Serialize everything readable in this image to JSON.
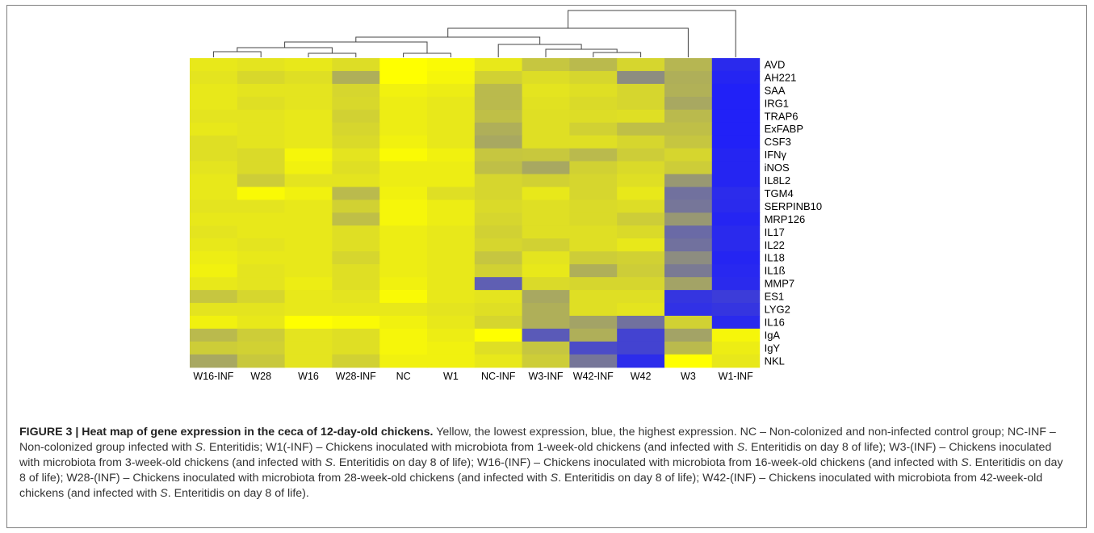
{
  "chart_data": {
    "type": "heatmap",
    "columns": [
      "W16-INF",
      "W28",
      "W16",
      "W28-INF",
      "NC",
      "W1",
      "NC-INF",
      "W3-INF",
      "W42-INF",
      "W42",
      "W3",
      "W1-INF"
    ],
    "rows": [
      "AVD",
      "AH221",
      "SAA",
      "IRG1",
      "TRAP6",
      "ExFABP",
      "CSF3",
      "IFNγ",
      "iNOS",
      "IL8L2",
      "TGM4",
      "SERPINB10",
      "MRP126",
      "IL17",
      "IL22",
      "IL18",
      "IL1ß",
      "MMP7",
      "ES1",
      "LYG2",
      "IL16",
      "IgA",
      "IgY",
      "NKL"
    ],
    "scale": "0 = yellow (lowest expression), 1 = blue (highest expression)",
    "color_low": "#ffff00",
    "color_high": "#1a1aff",
    "values": [
      [
        0.1,
        0.12,
        0.1,
        0.15,
        0.0,
        0.02,
        0.1,
        0.25,
        0.3,
        0.18,
        0.32,
        0.93
      ],
      [
        0.12,
        0.17,
        0.14,
        0.35,
        0.0,
        0.04,
        0.2,
        0.15,
        0.18,
        0.5,
        0.35,
        0.95
      ],
      [
        0.1,
        0.12,
        0.12,
        0.18,
        0.06,
        0.08,
        0.3,
        0.12,
        0.14,
        0.18,
        0.34,
        0.97
      ],
      [
        0.1,
        0.14,
        0.12,
        0.17,
        0.08,
        0.1,
        0.3,
        0.13,
        0.16,
        0.18,
        0.38,
        0.97
      ],
      [
        0.12,
        0.12,
        0.1,
        0.2,
        0.08,
        0.1,
        0.28,
        0.14,
        0.15,
        0.14,
        0.3,
        0.97
      ],
      [
        0.1,
        0.12,
        0.1,
        0.18,
        0.08,
        0.1,
        0.35,
        0.14,
        0.2,
        0.28,
        0.28,
        0.97
      ],
      [
        0.14,
        0.12,
        0.1,
        0.16,
        0.06,
        0.1,
        0.38,
        0.14,
        0.14,
        0.18,
        0.25,
        0.97
      ],
      [
        0.14,
        0.16,
        0.04,
        0.12,
        0.02,
        0.06,
        0.25,
        0.24,
        0.3,
        0.22,
        0.18,
        0.95
      ],
      [
        0.12,
        0.16,
        0.06,
        0.14,
        0.08,
        0.08,
        0.28,
        0.38,
        0.2,
        0.16,
        0.22,
        0.95
      ],
      [
        0.1,
        0.22,
        0.12,
        0.12,
        0.08,
        0.08,
        0.18,
        0.2,
        0.18,
        0.14,
        0.45,
        0.95
      ],
      [
        0.1,
        0.02,
        0.06,
        0.3,
        0.06,
        0.14,
        0.18,
        0.1,
        0.18,
        0.1,
        0.62,
        0.92
      ],
      [
        0.12,
        0.12,
        0.1,
        0.2,
        0.04,
        0.08,
        0.16,
        0.14,
        0.16,
        0.15,
        0.6,
        0.93
      ],
      [
        0.1,
        0.1,
        0.1,
        0.28,
        0.04,
        0.08,
        0.18,
        0.14,
        0.16,
        0.22,
        0.45,
        0.95
      ],
      [
        0.12,
        0.1,
        0.1,
        0.14,
        0.08,
        0.1,
        0.2,
        0.14,
        0.14,
        0.16,
        0.65,
        0.93
      ],
      [
        0.1,
        0.12,
        0.1,
        0.14,
        0.08,
        0.1,
        0.18,
        0.2,
        0.14,
        0.1,
        0.62,
        0.93
      ],
      [
        0.08,
        0.1,
        0.1,
        0.18,
        0.08,
        0.1,
        0.25,
        0.12,
        0.22,
        0.2,
        0.5,
        0.95
      ],
      [
        0.06,
        0.12,
        0.1,
        0.14,
        0.08,
        0.1,
        0.2,
        0.1,
        0.35,
        0.22,
        0.58,
        0.94
      ],
      [
        0.1,
        0.12,
        0.08,
        0.14,
        0.06,
        0.1,
        0.7,
        0.16,
        0.18,
        0.18,
        0.4,
        0.93
      ],
      [
        0.25,
        0.18,
        0.1,
        0.12,
        0.02,
        0.1,
        0.12,
        0.38,
        0.14,
        0.14,
        0.88,
        0.85
      ],
      [
        0.12,
        0.12,
        0.1,
        0.1,
        0.1,
        0.12,
        0.14,
        0.35,
        0.14,
        0.12,
        0.9,
        0.88
      ],
      [
        0.06,
        0.1,
        0.0,
        0.02,
        0.06,
        0.1,
        0.18,
        0.35,
        0.4,
        0.62,
        0.2,
        0.93
      ],
      [
        0.3,
        0.22,
        0.12,
        0.14,
        0.04,
        0.08,
        0.0,
        0.72,
        0.35,
        0.82,
        0.4,
        0.04
      ],
      [
        0.22,
        0.2,
        0.12,
        0.14,
        0.04,
        0.06,
        0.14,
        0.25,
        0.78,
        0.82,
        0.3,
        0.08
      ],
      [
        0.38,
        0.24,
        0.12,
        0.2,
        0.06,
        0.06,
        0.1,
        0.22,
        0.6,
        0.92,
        0.0,
        0.1
      ]
    ],
    "caption_title": "FIGURE 3 | Heat map of gene expression in the ceca of 12-day-old chickens.",
    "caption_segments": [
      {
        "t": " Yellow, the lowest expression, blue, the highest expression. NC – Non-colonized and non-infected control group; NC-INF – Non-colonized group infected with ",
        "i": false
      },
      {
        "t": "S",
        "i": true
      },
      {
        "t": ". Enteritidis; W1(-INF) – Chickens inoculated with microbiota from 1-week-old chickens (and infected with ",
        "i": false
      },
      {
        "t": "S",
        "i": true
      },
      {
        "t": ". Enteritidis on day 8 of life); W3-(INF) – Chickens inoculated with microbiota from 3-week-old chickens (and infected with ",
        "i": false
      },
      {
        "t": "S",
        "i": true
      },
      {
        "t": ". Enteritidis on day 8 of life); W16-(INF) – Chickens inoculated with microbiota from 16-week-old chickens (and infected with ",
        "i": false
      },
      {
        "t": "S",
        "i": true
      },
      {
        "t": ". Enteritidis on day 8 of life); W28-(INF) – Chickens inoculated with microbiota from 28-week-old chickens (and infected with ",
        "i": false
      },
      {
        "t": "S",
        "i": true
      },
      {
        "t": ". Enteritidis on day 8 of life); W42-(INF) – Chickens inoculated with microbiota from 42-week-old chickens (and infected with ",
        "i": false
      },
      {
        "t": "S",
        "i": true
      },
      {
        "t": ". Enteritidis on day 8 of life).",
        "i": false
      }
    ]
  }
}
